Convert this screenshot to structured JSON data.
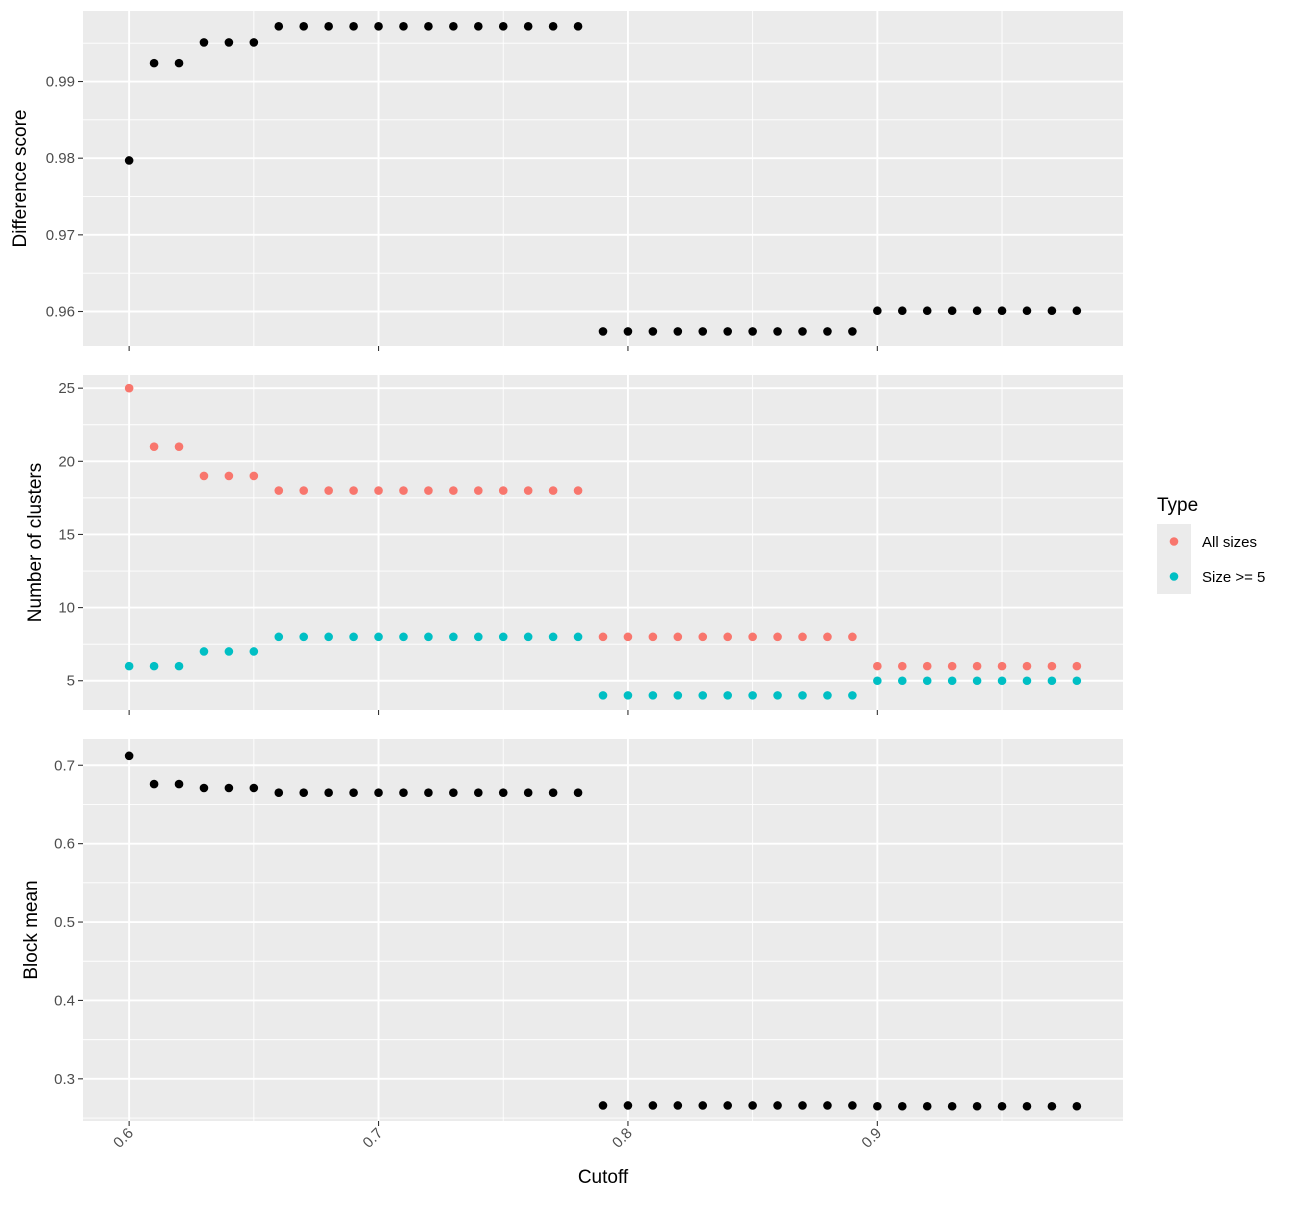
{
  "chart_data": {
    "type": "scatter",
    "x_label": "Cutoff",
    "x_ticks": [
      0.6,
      0.7,
      0.8,
      0.9
    ],
    "x_tick_labels": [
      "0.6",
      "0.7",
      "0.8",
      "0.9"
    ],
    "x_range": [
      0.5815,
      0.9985
    ],
    "grid": true,
    "legend": {
      "title": "Type",
      "placement": "right",
      "entries": [
        {
          "label": "All sizes",
          "color": "#F8766D"
        },
        {
          "label": "Size >= 5",
          "color": "#00BFC4"
        }
      ]
    },
    "panels": [
      {
        "ylabel": "Difference score",
        "ylim": [
          0.9555,
          0.9992
        ],
        "y_ticks": [
          0.96,
          0.97,
          0.98,
          0.99
        ],
        "y_tick_labels": [
          "0.96",
          "0.97",
          "0.98",
          "0.99"
        ],
        "series": [
          {
            "color": "#000000",
            "x": [
              0.6,
              0.61,
              0.62,
              0.63,
              0.64,
              0.65,
              0.66,
              0.67,
              0.68,
              0.69,
              0.7,
              0.71,
              0.72,
              0.73,
              0.74,
              0.75,
              0.76,
              0.77,
              0.78,
              0.79,
              0.8,
              0.81,
              0.82,
              0.83,
              0.84,
              0.85,
              0.86,
              0.87,
              0.88,
              0.89,
              0.9,
              0.91,
              0.92,
              0.93,
              0.94,
              0.95,
              0.96,
              0.97,
              0.98
            ],
            "y": [
              0.9797,
              0.9924,
              0.9924,
              0.9951,
              0.9951,
              0.9951,
              0.9972,
              0.9972,
              0.9972,
              0.9972,
              0.9972,
              0.9972,
              0.9972,
              0.9972,
              0.9972,
              0.9972,
              0.9972,
              0.9972,
              0.9972,
              0.9574,
              0.9574,
              0.9574,
              0.9574,
              0.9574,
              0.9574,
              0.9574,
              0.9574,
              0.9574,
              0.9574,
              0.9574,
              0.9601,
              0.9601,
              0.9601,
              0.9601,
              0.9601,
              0.9601,
              0.9601,
              0.9601,
              0.9601
            ]
          }
        ]
      },
      {
        "ylabel": "Number of clusters",
        "ylim": [
          3.0,
          25.9
        ],
        "y_ticks": [
          5,
          10,
          15,
          20,
          25
        ],
        "y_tick_labels": [
          "5",
          "10",
          "15",
          "20",
          "25"
        ],
        "series": [
          {
            "name": "All sizes",
            "color": "#F8766D",
            "x": [
              0.6,
              0.61,
              0.62,
              0.63,
              0.64,
              0.65,
              0.66,
              0.67,
              0.68,
              0.69,
              0.7,
              0.71,
              0.72,
              0.73,
              0.74,
              0.75,
              0.76,
              0.77,
              0.78,
              0.79,
              0.8,
              0.81,
              0.82,
              0.83,
              0.84,
              0.85,
              0.86,
              0.87,
              0.88,
              0.89,
              0.9,
              0.91,
              0.92,
              0.93,
              0.94,
              0.95,
              0.96,
              0.97,
              0.98
            ],
            "y": [
              25,
              21,
              21,
              19,
              19,
              19,
              18,
              18,
              18,
              18,
              18,
              18,
              18,
              18,
              18,
              18,
              18,
              18,
              18,
              8,
              8,
              8,
              8,
              8,
              8,
              8,
              8,
              8,
              8,
              8,
              6,
              6,
              6,
              6,
              6,
              6,
              6,
              6,
              6
            ]
          },
          {
            "name": "Size >= 5",
            "color": "#00BFC4",
            "x": [
              0.6,
              0.61,
              0.62,
              0.63,
              0.64,
              0.65,
              0.66,
              0.67,
              0.68,
              0.69,
              0.7,
              0.71,
              0.72,
              0.73,
              0.74,
              0.75,
              0.76,
              0.77,
              0.78,
              0.79,
              0.8,
              0.81,
              0.82,
              0.83,
              0.84,
              0.85,
              0.86,
              0.87,
              0.88,
              0.89,
              0.9,
              0.91,
              0.92,
              0.93,
              0.94,
              0.95,
              0.96,
              0.97,
              0.98
            ],
            "y": [
              6,
              6,
              6,
              7,
              7,
              7,
              8,
              8,
              8,
              8,
              8,
              8,
              8,
              8,
              8,
              8,
              8,
              8,
              8,
              4,
              4,
              4,
              4,
              4,
              4,
              4,
              4,
              4,
              4,
              4,
              5,
              5,
              5,
              5,
              5,
              5,
              5,
              5,
              5
            ]
          }
        ]
      },
      {
        "ylabel": "Block mean",
        "ylim": [
          0.2462,
          0.7335
        ],
        "y_ticks": [
          0.3,
          0.4,
          0.5,
          0.6,
          0.7
        ],
        "y_tick_labels": [
          "0.3",
          "0.4",
          "0.5",
          "0.6",
          "0.7"
        ],
        "series": [
          {
            "color": "#000000",
            "x": [
              0.6,
              0.61,
              0.62,
              0.63,
              0.64,
              0.65,
              0.66,
              0.67,
              0.68,
              0.69,
              0.7,
              0.71,
              0.72,
              0.73,
              0.74,
              0.75,
              0.76,
              0.77,
              0.78,
              0.79,
              0.8,
              0.81,
              0.82,
              0.83,
              0.84,
              0.85,
              0.86,
              0.87,
              0.88,
              0.89,
              0.9,
              0.91,
              0.92,
              0.93,
              0.94,
              0.95,
              0.96,
              0.97,
              0.98
            ],
            "y": [
              0.712,
              0.676,
              0.676,
              0.671,
              0.671,
              0.671,
              0.665,
              0.665,
              0.665,
              0.665,
              0.665,
              0.665,
              0.665,
              0.665,
              0.665,
              0.665,
              0.665,
              0.665,
              0.665,
              0.266,
              0.266,
              0.266,
              0.266,
              0.266,
              0.266,
              0.266,
              0.266,
              0.266,
              0.266,
              0.266,
              0.265,
              0.265,
              0.265,
              0.265,
              0.265,
              0.265,
              0.265,
              0.265,
              0.265
            ]
          }
        ]
      }
    ]
  }
}
